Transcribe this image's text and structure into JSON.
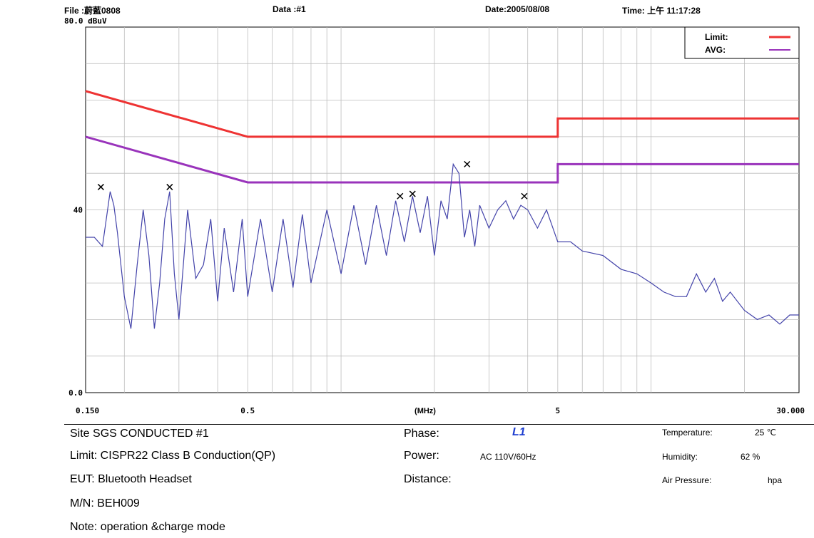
{
  "header": {
    "file": "File :蔚藍0808",
    "data": "Data :#1",
    "date": "Date:2005/08/08",
    "time": "Time: 上午 11:17:28"
  },
  "chart_data": {
    "type": "line",
    "unit_label": "dBuV",
    "xlabel": "(MHz)",
    "xscale": "log",
    "xlim": [
      0.15,
      30.0
    ],
    "ylim": [
      0,
      80
    ],
    "yticks": [
      "0.0",
      "40",
      "80.0"
    ],
    "xticks": [
      {
        "value": 0.15,
        "label": "0.150"
      },
      {
        "value": 0.5,
        "label": "0.5"
      },
      {
        "value": 5,
        "label": "5"
      },
      {
        "value": 30.0,
        "label": "30.000"
      }
    ],
    "grid": true,
    "legend_position": "top-right",
    "series": [
      {
        "name": "Limit:",
        "color": "#ee3333",
        "x": [
          0.15,
          0.5,
          0.5,
          5,
          5,
          30.0
        ],
        "y": [
          66,
          56,
          56,
          56,
          60,
          60
        ]
      },
      {
        "name": "AVG:",
        "color": "#9933bb",
        "x": [
          0.15,
          0.5,
          0.5,
          5,
          5,
          30.0
        ],
        "y": [
          56,
          46,
          46,
          46,
          50,
          50
        ]
      },
      {
        "name": "",
        "color": "#4444aa",
        "x": [
          0.15,
          0.16,
          0.17,
          0.18,
          0.185,
          0.19,
          0.2,
          0.21,
          0.22,
          0.23,
          0.24,
          0.25,
          0.26,
          0.27,
          0.28,
          0.29,
          0.3,
          0.31,
          0.32,
          0.34,
          0.36,
          0.38,
          0.4,
          0.42,
          0.45,
          0.48,
          0.5,
          0.55,
          0.6,
          0.65,
          0.7,
          0.75,
          0.8,
          0.9,
          1.0,
          1.1,
          1.2,
          1.3,
          1.4,
          1.5,
          1.6,
          1.7,
          1.8,
          1.9,
          2.0,
          2.1,
          2.2,
          2.3,
          2.4,
          2.5,
          2.6,
          2.7,
          2.8,
          3.0,
          3.2,
          3.4,
          3.6,
          3.8,
          4.0,
          4.3,
          4.6,
          5.0,
          5.5,
          6.0,
          7.0,
          8.0,
          9.0,
          10.0,
          11.0,
          12.0,
          13.0,
          14.0,
          15.0,
          16.0,
          17.0,
          18.0,
          20.0,
          22.0,
          24.0,
          26.0,
          28.0,
          30.0
        ],
        "y": [
          34,
          34,
          32,
          44,
          41,
          35,
          21,
          14,
          28,
          40,
          30,
          14,
          24,
          38,
          44,
          26,
          16,
          28,
          40,
          25,
          28,
          38,
          20,
          36,
          22,
          38,
          21,
          38,
          22,
          38,
          23,
          39,
          24,
          40,
          26,
          41,
          28,
          41,
          30,
          42,
          33,
          43,
          35,
          43,
          30,
          42,
          38,
          50,
          48,
          34,
          40,
          32,
          41,
          36,
          40,
          42,
          38,
          41,
          40,
          36,
          40,
          33,
          33,
          31,
          30,
          27,
          26,
          24,
          22,
          21,
          21,
          26,
          22,
          25,
          20,
          22,
          18,
          16,
          17,
          15,
          17,
          17
        ]
      },
      {
        "name": "",
        "color": "#000000",
        "marker": "x",
        "x": [
          0.168,
          0.28,
          1.55,
          1.7,
          2.55,
          3.9
        ],
        "y": [
          45,
          45,
          43,
          43.5,
          50,
          43
        ]
      }
    ]
  },
  "info": {
    "site": "Site  SGS CONDUCTED #1",
    "limit": "Limit:  CISPR22 Class B Conduction(QP)",
    "eut": "EUT:  Bluetooth Headset",
    "mn": "M/N:  BEH009",
    "note": "Note:  operation &charge mode",
    "phase_label": "Phase:",
    "phase_value": "L1",
    "power_label": "Power:",
    "power_value": "AC 110V/60Hz",
    "distance_label": "Distance:",
    "temperature_label": "Temperature:",
    "temperature_value": "25 ℃",
    "humidity_label": "Humidity:",
    "humidity_value": "62 %",
    "pressure_label": "Air Pressure:",
    "pressure_value": "hpa"
  }
}
